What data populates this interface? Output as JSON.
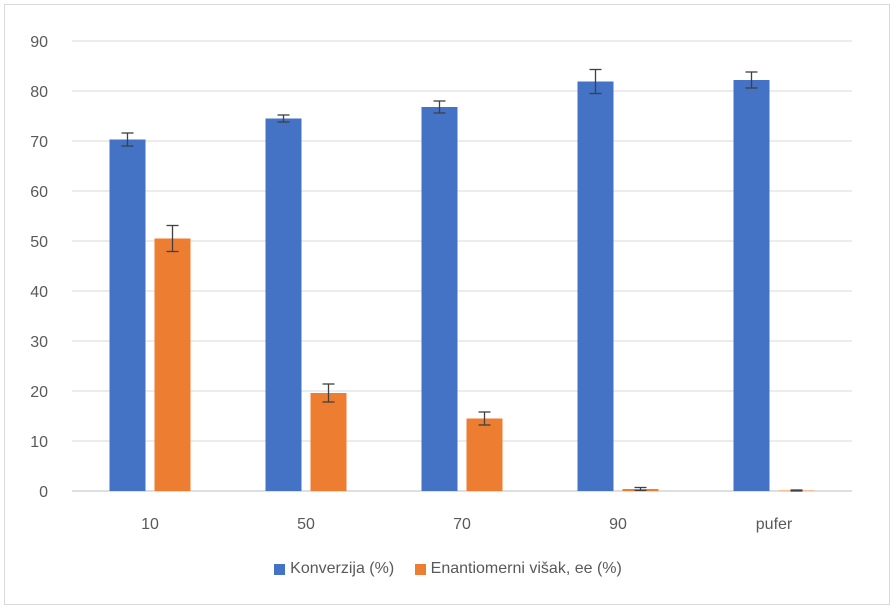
{
  "chart_data": {
    "type": "bar",
    "title": "",
    "xlabel": "",
    "ylabel": "",
    "categories": [
      "10",
      "50",
      "70",
      "90",
      "pufer"
    ],
    "ylim": [
      0,
      90
    ],
    "yticks": [
      0,
      10,
      20,
      30,
      40,
      50,
      60,
      70,
      80,
      90
    ],
    "grid": true,
    "legend_position": "bottom",
    "series": [
      {
        "name": "Konverzija (%)",
        "color": "#4472c4",
        "values": [
          70.3,
          74.5,
          76.8,
          81.9,
          82.2
        ],
        "errors": [
          1.3,
          0.7,
          1.2,
          2.4,
          1.6
        ]
      },
      {
        "name": "Enantiomerni višak, ee (%)",
        "color": "#ed7d31",
        "values": [
          50.5,
          19.6,
          14.5,
          0.4,
          0.1
        ],
        "errors": [
          2.6,
          1.8,
          1.3,
          0.3,
          0.1
        ]
      }
    ]
  }
}
